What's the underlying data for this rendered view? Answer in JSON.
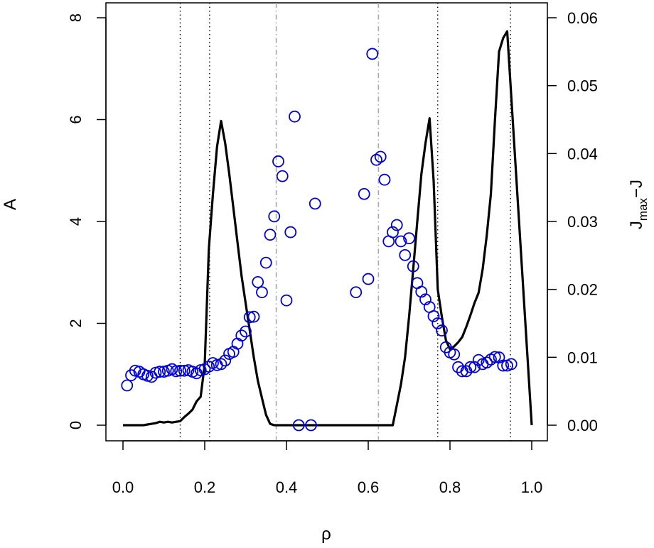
{
  "chart_data": {
    "type": "line",
    "xlabel": "ρ",
    "ylabel_left": "A",
    "ylabel_right": {
      "main": "J",
      "sub": "max",
      "suffix": "−J"
    },
    "xlim": [
      0.0,
      1.0
    ],
    "ylim_left": [
      0,
      8
    ],
    "ylim_right": [
      0.0,
      0.06
    ],
    "x_ticks": [
      "0.0",
      "0.2",
      "0.4",
      "0.6",
      "0.8",
      "1.0"
    ],
    "y_left_ticks": [
      "0",
      "2",
      "4",
      "6",
      "8"
    ],
    "y_right_ticks": [
      "0.00",
      "0.01",
      "0.02",
      "0.03",
      "0.04",
      "0.05",
      "0.06"
    ],
    "grid": false,
    "colors": {
      "scatter": "#0000dd",
      "line": "#000000",
      "dotted": "#000000",
      "dashdot": "#a8a8a8"
    },
    "vlines_dotted": [
      0.14,
      0.212,
      0.77,
      0.948
    ],
    "vlines_dashdot": [
      0.375,
      0.625
    ],
    "series": [
      {
        "type": "scatter",
        "axis": "left",
        "marker": "open-circle",
        "x": [
          0.01,
          0.02,
          0.03,
          0.04,
          0.05,
          0.06,
          0.07,
          0.08,
          0.09,
          0.1,
          0.11,
          0.12,
          0.13,
          0.14,
          0.15,
          0.16,
          0.17,
          0.18,
          0.19,
          0.2,
          0.21,
          0.22,
          0.23,
          0.24,
          0.25,
          0.26,
          0.27,
          0.28,
          0.29,
          0.3,
          0.31,
          0.32,
          0.33,
          0.34,
          0.35,
          0.36,
          0.37,
          0.38,
          0.39,
          0.4,
          0.41,
          0.42,
          0.43,
          0.46,
          0.47,
          0.57,
          0.59,
          0.6,
          0.61,
          0.62,
          0.63,
          0.64,
          0.65,
          0.66,
          0.67,
          0.68,
          0.69,
          0.7,
          0.71,
          0.72,
          0.73,
          0.74,
          0.75,
          0.76,
          0.77,
          0.78,
          0.79,
          0.8,
          0.81,
          0.82,
          0.83,
          0.84,
          0.85,
          0.86,
          0.87,
          0.88,
          0.89,
          0.9,
          0.91,
          0.92,
          0.93,
          0.94,
          0.95
        ],
        "y": [
          0.78,
          0.98,
          1.07,
          1.05,
          1.0,
          0.97,
          0.95,
          1.03,
          1.05,
          1.05,
          1.07,
          1.1,
          1.06,
          1.07,
          1.07,
          1.08,
          1.05,
          1.02,
          1.08,
          1.1,
          1.15,
          1.22,
          1.18,
          1.2,
          1.27,
          1.4,
          1.44,
          1.6,
          1.76,
          1.84,
          2.12,
          2.13,
          2.81,
          2.61,
          3.19,
          3.74,
          4.1,
          5.18,
          4.89,
          2.45,
          3.79,
          6.06,
          0.0,
          0.0,
          4.35,
          2.61,
          4.54,
          2.87,
          7.29,
          5.21,
          5.27,
          4.82,
          3.61,
          3.79,
          3.93,
          3.61,
          3.34,
          3.67,
          3.12,
          2.79,
          2.62,
          2.47,
          2.32,
          2.14,
          2.0,
          1.86,
          1.53,
          1.43,
          1.39,
          1.14,
          1.06,
          1.06,
          1.14,
          1.14,
          1.28,
          1.2,
          1.23,
          1.29,
          1.34,
          1.33,
          1.17,
          1.17,
          1.2
        ]
      },
      {
        "type": "line",
        "axis": "right",
        "x": [
          0.0,
          0.05,
          0.06,
          0.07,
          0.08,
          0.09,
          0.1,
          0.11,
          0.12,
          0.13,
          0.14,
          0.15,
          0.16,
          0.17,
          0.18,
          0.19,
          0.2,
          0.21,
          0.22,
          0.23,
          0.24,
          0.25,
          0.26,
          0.27,
          0.28,
          0.29,
          0.3,
          0.31,
          0.32,
          0.33,
          0.34,
          0.35,
          0.36,
          0.37,
          0.66,
          0.67,
          0.68,
          0.69,
          0.7,
          0.71,
          0.72,
          0.73,
          0.74,
          0.75,
          0.76,
          0.77,
          0.78,
          0.79,
          0.8,
          0.81,
          0.82,
          0.83,
          0.84,
          0.85,
          0.86,
          0.87,
          0.88,
          0.89,
          0.9,
          0.91,
          0.92,
          0.93,
          0.94,
          1.0
        ],
        "y": [
          0.0,
          0.0,
          0.0001,
          0.0002,
          0.0003,
          0.0005,
          0.0004,
          0.0005,
          0.0004,
          0.0005,
          0.0006,
          0.0012,
          0.0017,
          0.0023,
          0.0035,
          0.0042,
          0.009,
          0.026,
          0.034,
          0.041,
          0.0448,
          0.0415,
          0.037,
          0.032,
          0.027,
          0.022,
          0.018,
          0.014,
          0.01,
          0.0065,
          0.004,
          0.0015,
          0.0002,
          0.0,
          0.0,
          0.003,
          0.006,
          0.01,
          0.016,
          0.023,
          0.03,
          0.037,
          0.0415,
          0.0452,
          0.036,
          0.02,
          0.016,
          0.0125,
          0.0112,
          0.0116,
          0.0122,
          0.013,
          0.0145,
          0.0162,
          0.018,
          0.0195,
          0.023,
          0.028,
          0.034,
          0.045,
          0.055,
          0.057,
          0.058,
          0.0
        ]
      }
    ]
  }
}
